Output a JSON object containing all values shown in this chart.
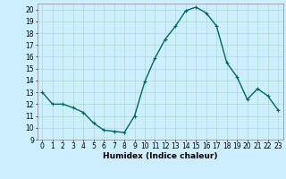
{
  "x": [
    0,
    1,
    2,
    3,
    4,
    5,
    6,
    7,
    8,
    9,
    10,
    11,
    12,
    13,
    14,
    15,
    16,
    17,
    18,
    19,
    20,
    21,
    22,
    23
  ],
  "y": [
    13,
    12,
    12,
    11.7,
    11.3,
    10.4,
    9.8,
    9.7,
    9.6,
    11.0,
    13.9,
    15.9,
    17.5,
    18.6,
    19.9,
    20.2,
    19.7,
    18.6,
    15.5,
    14.3,
    12.4,
    13.3,
    12.7,
    11.5
  ],
  "line_color": "#006666",
  "marker": "+",
  "marker_size": 3,
  "bg_color": "#cceeff",
  "grid_color": "#aaddcc",
  "xlabel": "Humidex (Indice chaleur)",
  "xlim": [
    -0.5,
    23.5
  ],
  "ylim": [
    9,
    20.5
  ],
  "yticks": [
    9,
    10,
    11,
    12,
    13,
    14,
    15,
    16,
    17,
    18,
    19,
    20
  ],
  "xticks": [
    0,
    1,
    2,
    3,
    4,
    5,
    6,
    7,
    8,
    9,
    10,
    11,
    12,
    13,
    14,
    15,
    16,
    17,
    18,
    19,
    20,
    21,
    22,
    23
  ],
  "label_fontsize": 6.5,
  "tick_fontsize": 5.5
}
